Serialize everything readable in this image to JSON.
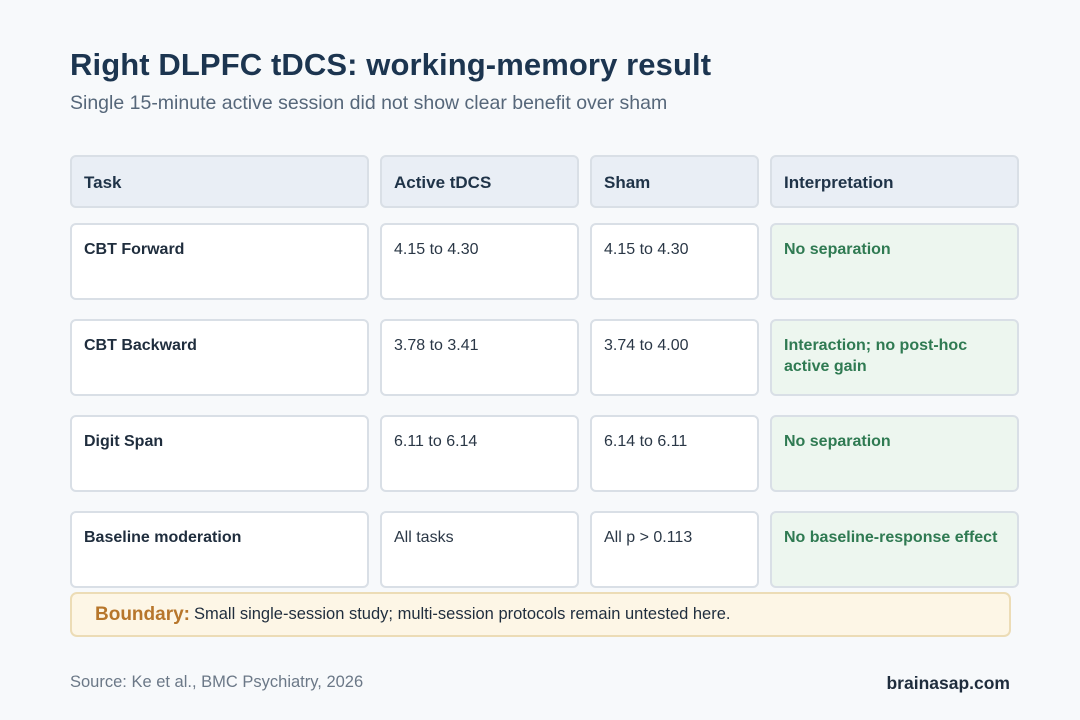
{
  "header": {
    "title": "Right DLPFC tDCS: working-memory result",
    "subtitle": "Single 15-minute active session did not show clear benefit over sham"
  },
  "table": {
    "columns": [
      "Task",
      "Active tDCS",
      "Sham",
      "Interpretation"
    ],
    "rows": [
      {
        "task": "CBT Forward",
        "active": "4.15 to 4.30",
        "sham": "4.15 to 4.30",
        "interpretation": "No separation"
      },
      {
        "task": "CBT Backward",
        "active": "3.78 to 3.41",
        "sham": "3.74 to 4.00",
        "interpretation": "Interaction; no post-hoc active gain"
      },
      {
        "task": "Digit Span",
        "active": "6.11 to 6.14",
        "sham": "6.14 to 6.11",
        "interpretation": "No separation"
      },
      {
        "task": "Baseline moderation",
        "active": "All tasks",
        "sham": "All p > 0.113",
        "interpretation": "No baseline-response effect"
      }
    ]
  },
  "boundary": {
    "label": "Boundary:",
    "text": "Small single-session study; multi-session protocols remain untested here."
  },
  "footer": {
    "source": "Source: Ke et al., BMC Psychiatry, 2026",
    "brand": "brainasap.com"
  },
  "colors": {
    "title": "#1c3550",
    "interpretation_text": "#2f7a52",
    "interpretation_bg": "#edf6ef",
    "boundary_label": "#b7762b",
    "boundary_bg": "#fdf6e6"
  }
}
